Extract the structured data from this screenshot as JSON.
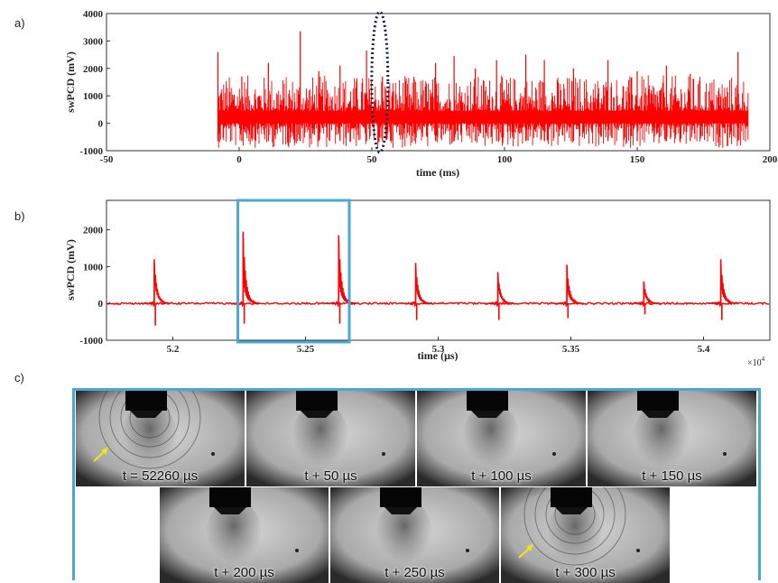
{
  "panel_labels": {
    "a": "a)",
    "b": "b)",
    "c": "c)"
  },
  "chart_data": [
    {
      "id": "a",
      "type": "line",
      "xlabel": "time (ms)",
      "ylabel": "swPCD (mV)",
      "xlim": [
        -50,
        200
      ],
      "ylim": [
        -1000,
        4000
      ],
      "xticks": [
        -50,
        0,
        50,
        100,
        150,
        200
      ],
      "yticks": [
        -1000,
        0,
        1000,
        2000,
        3000,
        4000
      ],
      "color": "#ff0000",
      "signal": {
        "x_start": -8,
        "x_end": 192,
        "baseline": 200,
        "noise_min": -700,
        "noise_max": 1500
      },
      "spikes": [
        {
          "x": -8,
          "y": 2600
        },
        {
          "x": 1,
          "y": 1700
        },
        {
          "x": 11,
          "y": 2200
        },
        {
          "x": 23,
          "y": 3350
        },
        {
          "x": 30,
          "y": 1900
        },
        {
          "x": 38,
          "y": 2100
        },
        {
          "x": 48,
          "y": 2650
        },
        {
          "x": 54,
          "y": 1700
        },
        {
          "x": 66,
          "y": 1600
        },
        {
          "x": 74,
          "y": 2200
        },
        {
          "x": 81,
          "y": 2450
        },
        {
          "x": 89,
          "y": 2000
        },
        {
          "x": 97,
          "y": 2300
        },
        {
          "x": 108,
          "y": 2500
        },
        {
          "x": 115,
          "y": 2300
        },
        {
          "x": 126,
          "y": 2000
        },
        {
          "x": 139,
          "y": 2300
        },
        {
          "x": 150,
          "y": 1900
        },
        {
          "x": 161,
          "y": 2100
        },
        {
          "x": 170,
          "y": 1800
        },
        {
          "x": 188,
          "y": 2600
        }
      ],
      "annotation": {
        "shape": "dotted-ellipse",
        "x": 53,
        "y": 1500
      }
    },
    {
      "id": "b",
      "type": "line",
      "xlabel": "time (μs)",
      "ylabel": "swPCD (mV)",
      "xlim": [
        5.175,
        5.425
      ],
      "ylim": [
        -1000,
        2800
      ],
      "xticks": [
        5.2,
        5.25,
        5.3,
        5.35,
        5.4
      ],
      "xtick_labels": [
        "5.2",
        "5.25",
        "5.3",
        "5.35",
        "5.4"
      ],
      "yticks": [
        -1000,
        0,
        1000,
        2000
      ],
      "x_multiplier": "×10",
      "x_multiplier_exp": "4",
      "color": "#ff0000",
      "pulses": [
        {
          "x": 5.193,
          "up": 1200,
          "down": -600
        },
        {
          "x": 5.2265,
          "up": 1950,
          "down": -550
        },
        {
          "x": 5.2625,
          "up": 1850,
          "down": -550
        },
        {
          "x": 5.2915,
          "up": 1100,
          "down": -450
        },
        {
          "x": 5.3225,
          "up": 850,
          "down": -450
        },
        {
          "x": 5.3485,
          "up": 1050,
          "down": -400
        },
        {
          "x": 5.3775,
          "up": 600,
          "down": -300
        },
        {
          "x": 5.4065,
          "up": 1200,
          "down": -450
        }
      ],
      "highlight": {
        "x_from": 5.2245,
        "x_to": 5.2665,
        "color": "#4aa8d6"
      }
    }
  ],
  "frames": {
    "border_color": "#4aa8d6",
    "arrow_color": "#f2e219",
    "items": [
      {
        "label": "t = 52260 µs",
        "arrow": true
      },
      {
        "label": "t + 50 µs",
        "arrow": false
      },
      {
        "label": "t + 100 µs",
        "arrow": false
      },
      {
        "label": "t + 150 µs",
        "arrow": false
      },
      {
        "label": "t + 200 µs",
        "arrow": false
      },
      {
        "label": "t + 250 µs",
        "arrow": false
      },
      {
        "label": "t + 300 µs",
        "arrow": true
      }
    ]
  }
}
